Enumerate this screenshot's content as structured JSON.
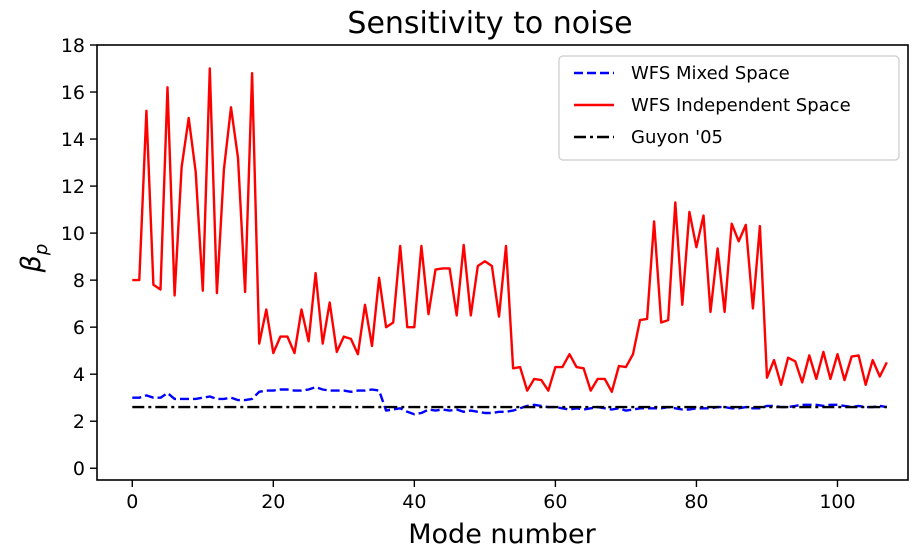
{
  "chart_data": {
    "type": "line",
    "title": "Sensitivity to noise",
    "xlabel": "Mode number",
    "ylabel": "βp",
    "ylabel_base": "β",
    "ylabel_sub": "p",
    "xlim": [
      -5,
      110
    ],
    "ylim": [
      -0.5,
      18
    ],
    "xticks": [
      0,
      20,
      40,
      60,
      80,
      100
    ],
    "yticks": [
      0,
      2,
      4,
      6,
      8,
      10,
      12,
      14,
      16,
      18
    ],
    "grid": false,
    "legend_position": "top-right",
    "x": [
      0,
      1,
      2,
      3,
      4,
      5,
      6,
      7,
      8,
      9,
      10,
      11,
      12,
      13,
      14,
      15,
      16,
      17,
      18,
      19,
      20,
      21,
      22,
      23,
      24,
      25,
      26,
      27,
      28,
      29,
      30,
      31,
      32,
      33,
      34,
      35,
      36,
      37,
      38,
      39,
      40,
      41,
      42,
      43,
      44,
      45,
      46,
      47,
      48,
      49,
      50,
      51,
      52,
      53,
      54,
      55,
      56,
      57,
      58,
      59,
      60,
      61,
      62,
      63,
      64,
      65,
      66,
      67,
      68,
      69,
      70,
      71,
      72,
      73,
      74,
      75,
      76,
      77,
      78,
      79,
      80,
      81,
      82,
      83,
      84,
      85,
      86,
      87,
      88,
      89,
      90,
      91,
      92,
      93,
      94,
      95,
      96,
      97,
      98,
      99,
      100,
      101,
      102,
      103,
      104,
      105,
      106,
      107
    ],
    "series": [
      {
        "name": "WFS Mixed Space",
        "color": "#0000ff",
        "dash": "dashed",
        "values": [
          3.0,
          3.0,
          3.1,
          3.0,
          3.0,
          3.2,
          2.95,
          2.95,
          2.95,
          2.95,
          3.0,
          3.05,
          2.95,
          2.95,
          3.0,
          2.9,
          2.9,
          2.95,
          3.25,
          3.3,
          3.3,
          3.35,
          3.35,
          3.3,
          3.3,
          3.35,
          3.45,
          3.35,
          3.3,
          3.3,
          3.3,
          3.25,
          3.3,
          3.3,
          3.35,
          3.3,
          2.45,
          2.5,
          2.55,
          2.4,
          2.3,
          2.35,
          2.5,
          2.45,
          2.5,
          2.45,
          2.5,
          2.4,
          2.45,
          2.4,
          2.35,
          2.35,
          2.4,
          2.4,
          2.45,
          2.55,
          2.65,
          2.7,
          2.65,
          2.6,
          2.6,
          2.55,
          2.5,
          2.55,
          2.5,
          2.55,
          2.6,
          2.55,
          2.5,
          2.55,
          2.45,
          2.5,
          2.55,
          2.55,
          2.55,
          2.55,
          2.6,
          2.55,
          2.5,
          2.5,
          2.55,
          2.55,
          2.55,
          2.6,
          2.6,
          2.55,
          2.55,
          2.6,
          2.55,
          2.55,
          2.65,
          2.65,
          2.6,
          2.6,
          2.65,
          2.7,
          2.7,
          2.7,
          2.65,
          2.7,
          2.7,
          2.65,
          2.6,
          2.65,
          2.6,
          2.6,
          2.65,
          2.6
        ]
      },
      {
        "name": "WFS Independent Space",
        "color": "#ff0000",
        "dash": "solid",
        "values": [
          8.0,
          8.0,
          15.2,
          7.8,
          7.6,
          16.2,
          7.35,
          12.8,
          14.9,
          12.6,
          7.55,
          17.0,
          7.45,
          12.7,
          15.35,
          13.2,
          7.5,
          16.8,
          5.3,
          6.75,
          4.9,
          5.6,
          5.6,
          4.9,
          6.75,
          5.4,
          8.3,
          5.3,
          7.05,
          4.95,
          5.6,
          5.5,
          4.85,
          6.95,
          5.2,
          8.1,
          6.0,
          6.2,
          9.45,
          6.0,
          6.0,
          9.45,
          6.55,
          8.45,
          8.5,
          8.5,
          6.5,
          9.5,
          6.5,
          8.6,
          8.8,
          8.6,
          6.45,
          9.45,
          4.25,
          4.3,
          3.3,
          3.8,
          3.75,
          3.3,
          4.3,
          4.3,
          4.85,
          4.3,
          4.25,
          3.3,
          3.8,
          3.8,
          3.25,
          4.35,
          4.3,
          4.85,
          6.3,
          6.35,
          10.5,
          6.2,
          6.3,
          11.3,
          6.95,
          10.9,
          9.4,
          10.75,
          6.65,
          9.35,
          6.65,
          10.4,
          9.65,
          10.35,
          6.8,
          10.3,
          3.85,
          4.6,
          3.55,
          4.7,
          4.55,
          3.65,
          4.8,
          3.8,
          4.95,
          3.8,
          4.85,
          3.75,
          4.75,
          4.8,
          3.55,
          4.6,
          3.9,
          4.5
        ]
      },
      {
        "name": "Guyon '05",
        "color": "#000000",
        "dash": "dashdot",
        "values": [
          2.6,
          2.6,
          2.6,
          2.6,
          2.6,
          2.6,
          2.6,
          2.6,
          2.6,
          2.6,
          2.6,
          2.6,
          2.6,
          2.6,
          2.6,
          2.6,
          2.6,
          2.6,
          2.6,
          2.6,
          2.6,
          2.6,
          2.6,
          2.6,
          2.6,
          2.6,
          2.6,
          2.6,
          2.6,
          2.6,
          2.6,
          2.6,
          2.6,
          2.6,
          2.6,
          2.6,
          2.6,
          2.6,
          2.6,
          2.6,
          2.6,
          2.6,
          2.6,
          2.6,
          2.6,
          2.6,
          2.6,
          2.6,
          2.6,
          2.6,
          2.6,
          2.6,
          2.6,
          2.6,
          2.6,
          2.6,
          2.6,
          2.6,
          2.6,
          2.6,
          2.6,
          2.6,
          2.6,
          2.6,
          2.6,
          2.6,
          2.6,
          2.6,
          2.6,
          2.6,
          2.6,
          2.6,
          2.6,
          2.6,
          2.6,
          2.6,
          2.6,
          2.6,
          2.6,
          2.6,
          2.6,
          2.6,
          2.6,
          2.6,
          2.6,
          2.6,
          2.6,
          2.6,
          2.6,
          2.6,
          2.6,
          2.6,
          2.6,
          2.6,
          2.6,
          2.6,
          2.6,
          2.6,
          2.6,
          2.6,
          2.6,
          2.6,
          2.6,
          2.6,
          2.6,
          2.6,
          2.6,
          2.6
        ]
      }
    ]
  }
}
